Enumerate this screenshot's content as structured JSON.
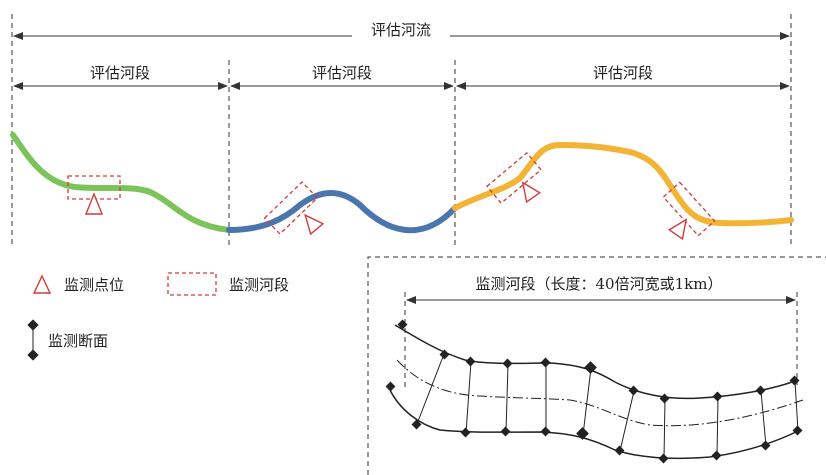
{
  "diagram": {
    "river_label": "评估河流",
    "reach_labels": [
      "评估河段",
      "评估河段",
      "评估河段"
    ],
    "legend": {
      "point_label": "监测点位",
      "segment_label": "监测河段",
      "section_label": "监测断面"
    },
    "detail_label": "监测河段（长度：40倍河宽或1km）",
    "colors": {
      "reach_1": "#7dc35b",
      "reach_2": "#4a76ad",
      "reach_3": "#f3b435",
      "marker": "#d33a3a"
    }
  }
}
